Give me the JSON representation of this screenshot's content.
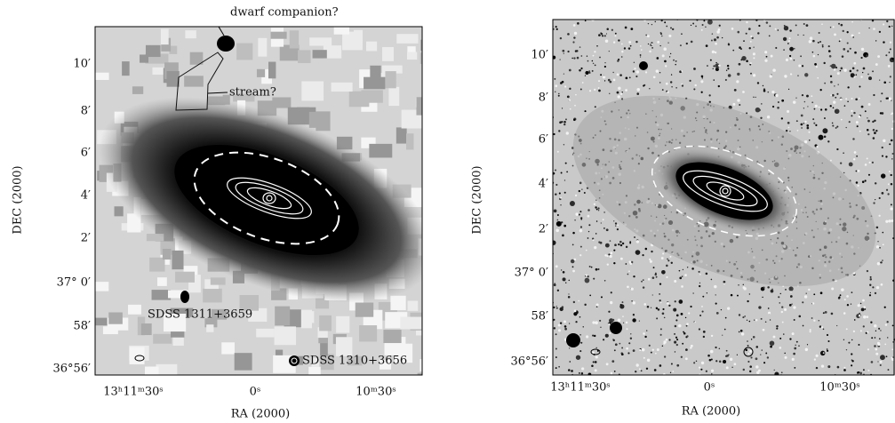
{
  "panels": [
    {
      "y_tick_labels": [
        "10′",
        "8′",
        "6′",
        "4′",
        "2′",
        "37° 0′",
        "58′",
        "36°56′"
      ],
      "x_tick_labels": [
        "13ʰ11ᵐ30ˢ",
        "0ˢ",
        "10ᵐ30ˢ"
      ],
      "x_axis_label": "RA (2000)",
      "y_axis_label": "DEC (2000)",
      "annotations": [
        "dwarf companion?",
        "stream?",
        "SDSS 1311+3659",
        "SDSS 1310+3656"
      ]
    },
    {
      "y_tick_labels": [
        "10′",
        "8′",
        "6′",
        "4′",
        "2′",
        "37° 0′",
        "58′",
        "36°56′"
      ],
      "x_tick_labels": [
        "13ʰ11ᵐ30ˢ",
        "0ˢ",
        "10ᵐ30ˢ"
      ],
      "x_axis_label": "RA (2000)",
      "y_axis_label": "DEC (2000)"
    }
  ]
}
